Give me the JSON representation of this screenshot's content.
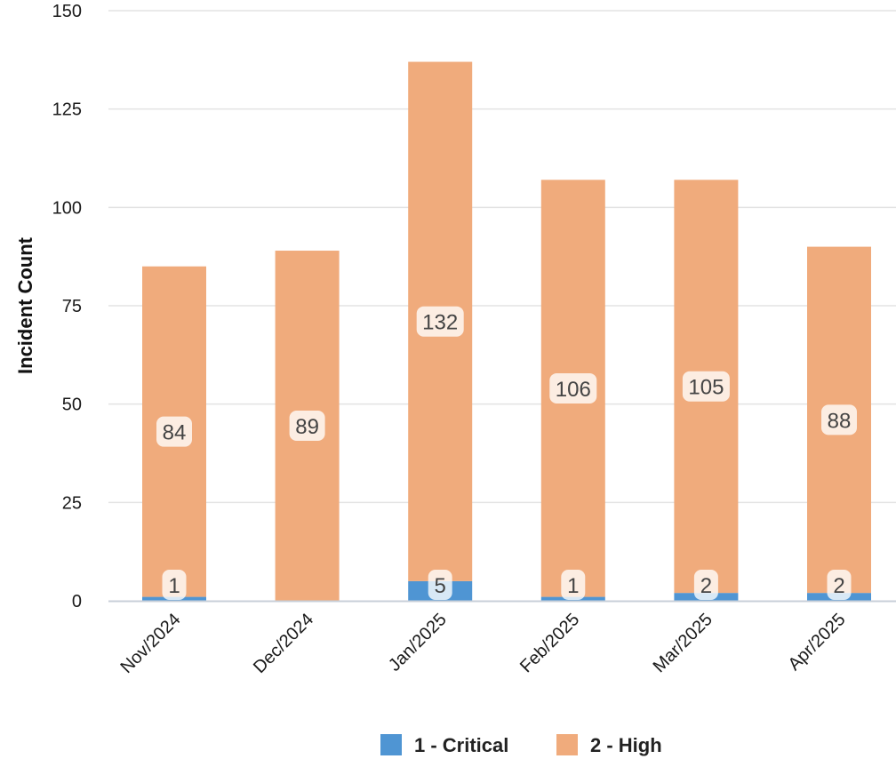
{
  "chart_data": {
    "type": "bar",
    "stacked": true,
    "title": "",
    "xlabel": "",
    "ylabel": "Incident Count",
    "ylim": [
      0,
      150
    ],
    "yticks": [
      0,
      25,
      50,
      75,
      100,
      125,
      150
    ],
    "grid": true,
    "legend_position": "bottom",
    "categories": [
      "Nov/2024",
      "Dec/2024",
      "Jan/2025",
      "Feb/2025",
      "Mar/2025",
      "Apr/2025"
    ],
    "series": [
      {
        "name": "1 - Critical",
        "color": "#4f95d3",
        "values": [
          1,
          0,
          5,
          1,
          2,
          2
        ],
        "labels": [
          "1",
          "",
          "5",
          "1",
          "2",
          "2"
        ]
      },
      {
        "name": "2 - High",
        "color": "#f0ab7c",
        "values": [
          84,
          89,
          132,
          106,
          105,
          88
        ],
        "labels": [
          "84",
          "89",
          "132",
          "106",
          "105",
          "88"
        ]
      }
    ]
  }
}
